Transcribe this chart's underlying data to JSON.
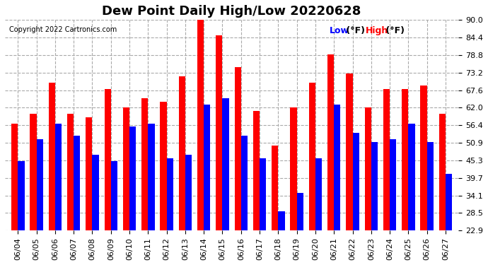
{
  "title": "Dew Point Daily High/Low 20220628",
  "copyright": "Copyright 2022 Cartronics.com",
  "dates": [
    "06/04",
    "06/05",
    "06/06",
    "06/07",
    "06/08",
    "06/09",
    "06/10",
    "06/11",
    "06/12",
    "06/13",
    "06/14",
    "06/15",
    "06/16",
    "06/17",
    "06/18",
    "06/19",
    "06/20",
    "06/21",
    "06/22",
    "06/23",
    "06/24",
    "06/25",
    "06/26",
    "06/27"
  ],
  "high_values": [
    57.0,
    60.0,
    70.0,
    60.0,
    59.0,
    68.0,
    62.0,
    65.0,
    64.0,
    72.0,
    91.0,
    85.0,
    75.0,
    61.0,
    50.0,
    62.0,
    70.0,
    79.0,
    73.0,
    62.0,
    68.0,
    68.0,
    69.0,
    60.0
  ],
  "low_values": [
    45.0,
    52.0,
    57.0,
    53.0,
    47.0,
    45.0,
    56.0,
    57.0,
    46.0,
    47.0,
    63.0,
    65.0,
    53.0,
    46.0,
    29.0,
    35.0,
    46.0,
    63.0,
    54.0,
    51.0,
    52.0,
    57.0,
    51.0,
    41.0
  ],
  "ylim": [
    22.9,
    90.0
  ],
  "yticks": [
    22.9,
    28.5,
    34.1,
    39.7,
    45.3,
    50.9,
    56.4,
    62.0,
    67.6,
    73.2,
    78.8,
    84.4,
    90.0
  ],
  "bar_width": 0.35,
  "high_color": "#ff0000",
  "low_color": "#0000ff",
  "bg_color": "#ffffff",
  "grid_color": "#aaaaaa",
  "title_fontsize": 13,
  "tick_fontsize": 8,
  "copyright_fontsize": 7
}
